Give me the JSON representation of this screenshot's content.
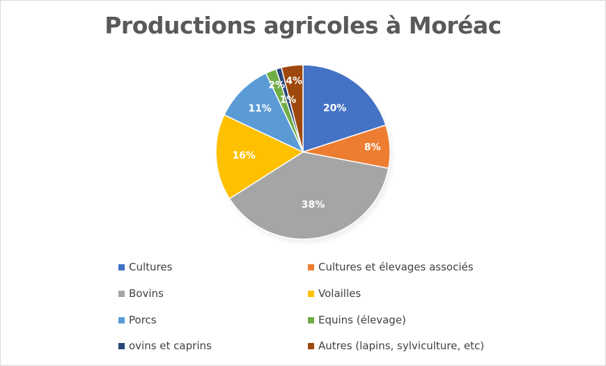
{
  "chart_data": {
    "type": "pie",
    "title": "Productions agricoles à Moréac",
    "legend_position": "bottom",
    "slices": [
      {
        "name": "Cultures",
        "value": 20,
        "label": "20%",
        "color": "#4472C4"
      },
      {
        "name": "Cultures et élevages associés",
        "value": 8,
        "label": "8%",
        "color": "#ED7D31"
      },
      {
        "name": "Bovins",
        "value": 38,
        "label": "38%",
        "color": "#A5A5A5"
      },
      {
        "name": "Volailles",
        "value": 16,
        "label": "16%",
        "color": "#FFC000"
      },
      {
        "name": "Porcs",
        "value": 11,
        "label": "11%",
        "color": "#5B9BD5"
      },
      {
        "name": "Equins (élevage)",
        "value": 2,
        "label": "2%",
        "color": "#70AD47"
      },
      {
        "name": "ovins et caprins",
        "value": 1,
        "label": "1%",
        "color": "#264478"
      },
      {
        "name": "Autres (lapins, sylviculture, etc)",
        "value": 4,
        "label": "4%",
        "color": "#9E480E"
      }
    ]
  }
}
